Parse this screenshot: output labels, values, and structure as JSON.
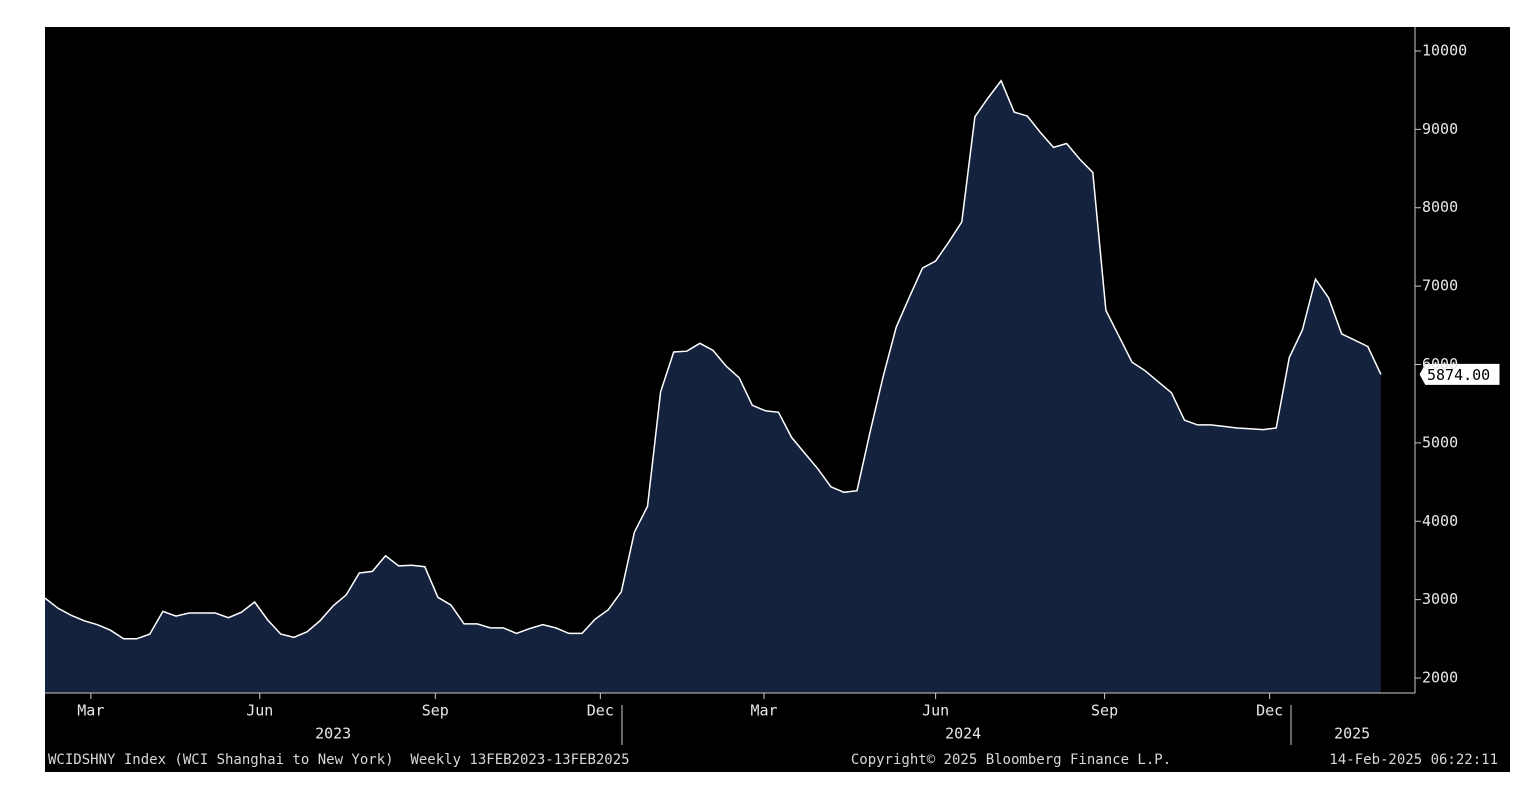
{
  "chart_data": {
    "type": "area",
    "series": [
      {
        "name": "WCIDSHNY Index",
        "color": "#14223d",
        "line_color": "#ffffff",
        "values": [
          3020,
          2890,
          2800,
          2730,
          2680,
          2610,
          2500,
          2500,
          2560,
          2850,
          2790,
          2830,
          2830,
          2830,
          2770,
          2840,
          2970,
          2740,
          2560,
          2520,
          2590,
          2730,
          2920,
          3060,
          3340,
          3360,
          3560,
          3430,
          3440,
          3420,
          3030,
          2930,
          2690,
          2690,
          2640,
          2640,
          2570,
          2630,
          2680,
          2640,
          2570,
          2570,
          2750,
          2870,
          3100,
          3860,
          4190,
          5650,
          6160,
          6170,
          6270,
          6180,
          5980,
          5830,
          5480,
          5410,
          5390,
          5070,
          4870,
          4670,
          4440,
          4370,
          4390,
          5140,
          5850,
          6480,
          6860,
          7230,
          7320,
          7560,
          7820,
          9160,
          9400,
          9620,
          9220,
          9170,
          8960,
          8770,
          8820,
          8620,
          8450,
          6690,
          6360,
          6030,
          5920,
          5780,
          5640,
          5290,
          5230,
          5230,
          5210,
          5190,
          5180,
          5170,
          5190,
          6090,
          6440,
          7090,
          6850,
          6390,
          6310,
          6230,
          5874
        ],
        "last_value_label": "5874.00"
      }
    ],
    "xlim": [
      0,
      104.6
    ],
    "xticks": [
      {
        "value": 3.5,
        "label": "Mar"
      },
      {
        "value": 16.4,
        "label": "Jun"
      },
      {
        "value": 29.8,
        "label": "Sep"
      },
      {
        "value": 42.4,
        "label": "Dec"
      },
      {
        "value": 54.9,
        "label": "Mar"
      },
      {
        "value": 68.0,
        "label": "Jun"
      },
      {
        "value": 80.9,
        "label": "Sep"
      },
      {
        "value": 93.5,
        "label": "Dec"
      }
    ],
    "year_ticks": [
      {
        "value": 22.0,
        "label": "2023"
      },
      {
        "value": 70.1,
        "label": "2024"
      },
      {
        "value": 99.8,
        "label": "2025"
      }
    ],
    "ylim": [
      1809,
      10306
    ],
    "yticks": [
      2000,
      3000,
      4000,
      5000,
      6000,
      7000,
      8000,
      9000,
      10000
    ],
    "footer": {
      "left": "WCIDSHNY Index (WCI Shanghai to New York)  Weekly 13FEB2023-13FEB2025",
      "center": "Copyright© 2025 Bloomberg Finance L.P.",
      "right": "14-Feb-2025 06:22:11"
    }
  }
}
